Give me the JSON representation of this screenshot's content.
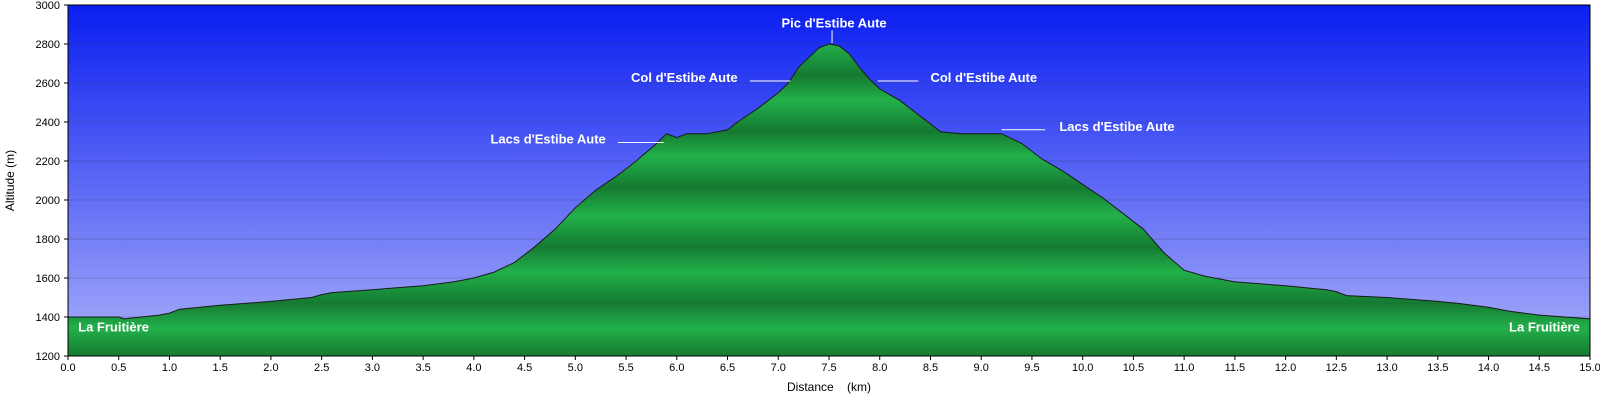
{
  "chart_data": {
    "type": "area",
    "title": "",
    "xlabel": "Distance    (km)",
    "ylabel": "Altitude (m)",
    "xlim": [
      0,
      15
    ],
    "ylim": [
      1200,
      3000
    ],
    "xticks": [
      "0.0",
      "0.5",
      "1.0",
      "1.5",
      "2.0",
      "2.5",
      "3.0",
      "3.5",
      "4.0",
      "4.5",
      "5.0",
      "5.5",
      "6.0",
      "6.5",
      "7.0",
      "7.5",
      "8.0",
      "8.5",
      "9.0",
      "9.5",
      "10.0",
      "10.5",
      "11.0",
      "11.5",
      "12.0",
      "12.5",
      "13.0",
      "13.5",
      "14.0",
      "14.5",
      "15.0"
    ],
    "yticks": [
      "1200",
      "1400",
      "1600",
      "1800",
      "2000",
      "2200",
      "2400",
      "2600",
      "2800",
      "3000"
    ],
    "grid": true,
    "colors": {
      "sky_top": "#0a1ef0",
      "sky_bottom": "#aab0fa",
      "terrain_light": "#22b04a",
      "terrain_dark": "#157a31",
      "outline": "#1a1a1a"
    },
    "x": [
      0.0,
      0.5,
      0.55,
      0.9,
      1.0,
      1.1,
      1.3,
      1.5,
      2.0,
      2.4,
      2.5,
      2.6,
      3.0,
      3.5,
      3.8,
      4.0,
      4.2,
      4.4,
      4.6,
      4.8,
      5.0,
      5.2,
      5.4,
      5.6,
      5.8,
      5.9,
      6.0,
      6.1,
      6.3,
      6.5,
      6.6,
      6.8,
      7.0,
      7.1,
      7.2,
      7.3,
      7.4,
      7.5,
      7.6,
      7.7,
      7.8,
      7.9,
      8.0,
      8.2,
      8.4,
      8.6,
      8.8,
      9.0,
      9.2,
      9.4,
      9.6,
      9.8,
      10.0,
      10.2,
      10.4,
      10.6,
      10.8,
      11.0,
      11.2,
      11.5,
      12.0,
      12.4,
      12.5,
      12.6,
      13.0,
      13.5,
      13.7,
      14.0,
      14.2,
      14.5,
      15.0
    ],
    "y": [
      1400,
      1400,
      1390,
      1410,
      1420,
      1440,
      1450,
      1460,
      1480,
      1500,
      1515,
      1525,
      1540,
      1560,
      1580,
      1600,
      1630,
      1680,
      1760,
      1850,
      1960,
      2050,
      2120,
      2200,
      2290,
      2340,
      2320,
      2340,
      2340,
      2360,
      2400,
      2470,
      2550,
      2600,
      2680,
      2730,
      2780,
      2800,
      2790,
      2750,
      2680,
      2620,
      2570,
      2510,
      2430,
      2350,
      2340,
      2340,
      2340,
      2290,
      2210,
      2150,
      2080,
      2010,
      1930,
      1850,
      1730,
      1640,
      1610,
      1580,
      1560,
      1540,
      1530,
      1510,
      1500,
      1480,
      1470,
      1450,
      1430,
      1410,
      1390
    ],
    "annotations": [
      {
        "text": "La Fruitière",
        "x": 0.1,
        "y": 1325,
        "anchor": "start"
      },
      {
        "text": "La Fruitière",
        "x": 14.9,
        "y": 1325,
        "anchor": "end"
      },
      {
        "text": "Lacs d'Estibe Aute",
        "x": 5.3,
        "y": 2290,
        "anchor": "end",
        "lineFrom": 5.42,
        "lineTo": 5.87,
        "lineY": 2295
      },
      {
        "text": "Col d'Estibe Aute",
        "x": 6.6,
        "y": 2605,
        "anchor": "end",
        "lineFrom": 6.72,
        "lineTo": 7.12,
        "lineY": 2610
      },
      {
        "text": "Pic d'Estibe Aute",
        "x": 7.55,
        "y": 2885,
        "anchor": "middle",
        "lineX": 7.53,
        "lineFromY": 2870,
        "lineToY": 2805
      },
      {
        "text": "Col d'Estibe Aute",
        "x": 8.5,
        "y": 2605,
        "anchor": "start",
        "lineFrom": 7.98,
        "lineTo": 8.38,
        "lineY": 2610
      },
      {
        "text": "Lacs d'Estibe Aute",
        "x": 9.77,
        "y": 2355,
        "anchor": "start",
        "lineFrom": 9.2,
        "lineTo": 9.63,
        "lineY": 2360
      }
    ]
  }
}
